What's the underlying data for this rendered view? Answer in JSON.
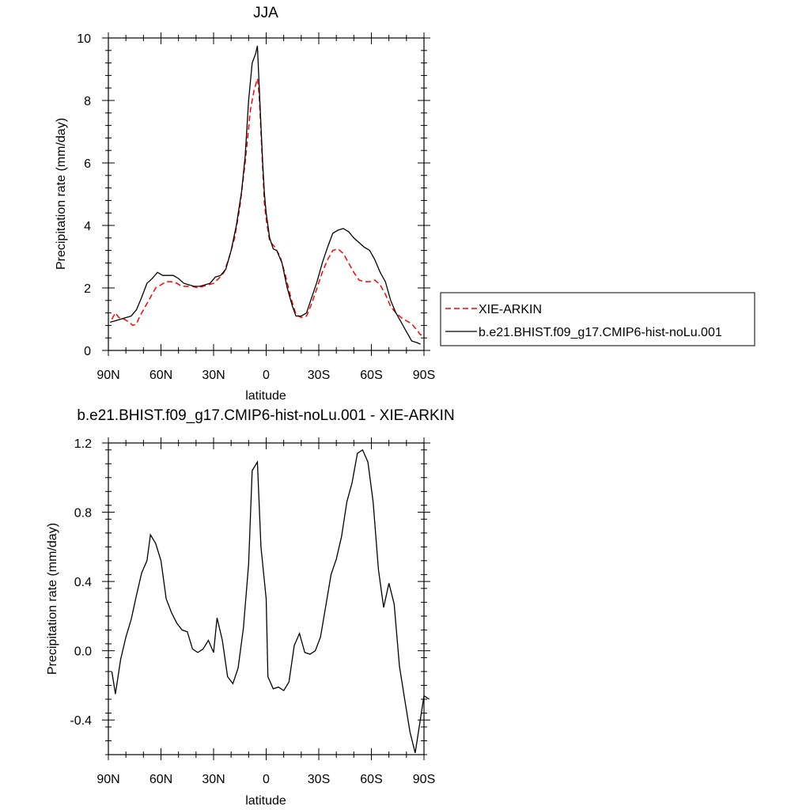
{
  "chart_data": [
    {
      "type": "line",
      "title": "JJA",
      "xlabel": "latitude",
      "ylabel": "Precipitation rate (mm/day)",
      "xlim": [
        90,
        -90
      ],
      "ylim": [
        0,
        10
      ],
      "xticks": [
        90,
        60,
        30,
        0,
        -30,
        -60,
        -90
      ],
      "xtick_labels": [
        "90N",
        "60N",
        "30N",
        "0",
        "30S",
        "60S",
        "90S"
      ],
      "yticks": [
        0,
        2,
        4,
        6,
        8,
        10
      ],
      "ytick_labels": [
        "0",
        "2",
        "4",
        "6",
        "8",
        "10"
      ],
      "legend_position": "right",
      "series": [
        {
          "name": "XIE-ARKIN",
          "color": "#ff0000",
          "dash": "dashed",
          "points": [
            [
              88,
              1.0
            ],
            [
              86,
              1.2
            ],
            [
              84,
              1.05
            ],
            [
              81,
              1.0
            ],
            [
              78,
              0.9
            ],
            [
              76,
              0.8
            ],
            [
              74,
              0.85
            ],
            [
              72,
              1.1
            ],
            [
              69,
              1.4
            ],
            [
              66,
              1.7
            ],
            [
              63,
              2.0
            ],
            [
              60,
              2.1
            ],
            [
              57,
              2.2
            ],
            [
              54,
              2.2
            ],
            [
              51,
              2.15
            ],
            [
              48,
              2.05
            ],
            [
              45,
              2.05
            ],
            [
              42,
              2.05
            ],
            [
              39,
              2.0
            ],
            [
              36,
              2.05
            ],
            [
              33,
              2.1
            ],
            [
              30,
              2.15
            ],
            [
              27,
              2.3
            ],
            [
              24,
              2.5
            ],
            [
              21,
              3.0
            ],
            [
              18,
              3.6
            ],
            [
              15,
              4.6
            ],
            [
              12,
              6.0
            ],
            [
              9,
              7.7
            ],
            [
              7,
              8.3
            ],
            [
              6,
              8.5
            ],
            [
              5,
              8.7
            ],
            [
              4,
              8.2
            ],
            [
              3,
              7.0
            ],
            [
              2,
              5.8
            ],
            [
              1,
              4.7
            ],
            [
              0,
              4.2
            ],
            [
              -2,
              3.5
            ],
            [
              -5,
              3.3
            ],
            [
              -8,
              3.0
            ],
            [
              -11,
              2.4
            ],
            [
              -14,
              1.7
            ],
            [
              -17,
              1.15
            ],
            [
              -20,
              1.05
            ],
            [
              -23,
              1.1
            ],
            [
              -26,
              1.5
            ],
            [
              -29,
              2.0
            ],
            [
              -32,
              2.5
            ],
            [
              -35,
              2.9
            ],
            [
              -38,
              3.2
            ],
            [
              -41,
              3.25
            ],
            [
              -44,
              3.1
            ],
            [
              -47,
              2.8
            ],
            [
              -50,
              2.5
            ],
            [
              -53,
              2.25
            ],
            [
              -56,
              2.2
            ],
            [
              -59,
              2.2
            ],
            [
              -62,
              2.25
            ],
            [
              -65,
              2.1
            ],
            [
              -68,
              1.8
            ],
            [
              -71,
              1.4
            ],
            [
              -74,
              1.2
            ],
            [
              -77,
              1.05
            ],
            [
              -80,
              0.95
            ],
            [
              -83,
              0.85
            ],
            [
              -86,
              0.65
            ],
            [
              -88,
              0.5
            ],
            [
              -90,
              0.5
            ]
          ]
        },
        {
          "name": "b.e21.BHIST.f09_g17.CMIP6-hist-noLu.001",
          "color": "#000000",
          "dash": "solid",
          "points": [
            [
              89,
              0.9
            ],
            [
              86,
              0.95
            ],
            [
              83,
              1.0
            ],
            [
              80,
              1.05
            ],
            [
              77,
              1.1
            ],
            [
              74,
              1.3
            ],
            [
              71,
              1.7
            ],
            [
              68,
              2.15
            ],
            [
              65,
              2.3
            ],
            [
              62,
              2.5
            ],
            [
              59,
              2.4
            ],
            [
              56,
              2.4
            ],
            [
              53,
              2.4
            ],
            [
              50,
              2.3
            ],
            [
              47,
              2.15
            ],
            [
              44,
              2.1
            ],
            [
              41,
              2.05
            ],
            [
              38,
              2.05
            ],
            [
              35,
              2.1
            ],
            [
              32,
              2.15
            ],
            [
              29,
              2.35
            ],
            [
              26,
              2.4
            ],
            [
              23,
              2.6
            ],
            [
              20,
              3.2
            ],
            [
              17,
              4.0
            ],
            [
              14,
              5.1
            ],
            [
              12,
              6.2
            ],
            [
              10,
              8.0
            ],
            [
              8,
              9.2
            ],
            [
              6,
              9.5
            ],
            [
              5,
              9.75
            ],
            [
              4,
              8.5
            ],
            [
              3,
              7.2
            ],
            [
              2,
              6.0
            ],
            [
              1,
              5.0
            ],
            [
              0,
              4.4
            ],
            [
              -2,
              3.6
            ],
            [
              -4,
              3.25
            ],
            [
              -6,
              3.2
            ],
            [
              -9,
              2.8
            ],
            [
              -12,
              2.0
            ],
            [
              -15,
              1.4
            ],
            [
              -17,
              1.1
            ],
            [
              -20,
              1.1
            ],
            [
              -23,
              1.2
            ],
            [
              -26,
              1.7
            ],
            [
              -29,
              2.2
            ],
            [
              -32,
              2.8
            ],
            [
              -35,
              3.3
            ],
            [
              -38,
              3.75
            ],
            [
              -41,
              3.85
            ],
            [
              -44,
              3.9
            ],
            [
              -47,
              3.8
            ],
            [
              -50,
              3.6
            ],
            [
              -53,
              3.45
            ],
            [
              -56,
              3.3
            ],
            [
              -59,
              3.2
            ],
            [
              -62,
              2.9
            ],
            [
              -65,
              2.5
            ],
            [
              -68,
              2.2
            ],
            [
              -71,
              1.6
            ],
            [
              -74,
              1.2
            ],
            [
              -77,
              0.9
            ],
            [
              -80,
              0.6
            ],
            [
              -83,
              0.3
            ],
            [
              -86,
              0.25
            ],
            [
              -88,
              0.2
            ]
          ]
        }
      ]
    },
    {
      "type": "line",
      "title": "b.e21.BHIST.f09_g17.CMIP6-hist-noLu.001 - XIE-ARKIN",
      "xlabel": "latitude",
      "ylabel": "Precipitation rate (mm/day)",
      "xlim": [
        90,
        -90
      ],
      "ylim": [
        -0.6,
        1.2
      ],
      "xticks": [
        90,
        60,
        30,
        0,
        -30,
        -60,
        -90
      ],
      "xtick_labels": [
        "90N",
        "60N",
        "30N",
        "0",
        "30S",
        "60S",
        "90S"
      ],
      "yticks": [
        -0.4,
        0.0,
        0.4,
        0.8,
        1.2
      ],
      "ytick_labels": [
        "-0.4",
        "0.0",
        "0.4",
        "0.8",
        "1.2"
      ],
      "series": [
        {
          "color": "#000000",
          "dash": "solid",
          "points": [
            [
              88,
              -0.12
            ],
            [
              86,
              -0.25
            ],
            [
              83,
              -0.05
            ],
            [
              80,
              0.08
            ],
            [
              77,
              0.18
            ],
            [
              74,
              0.32
            ],
            [
              71,
              0.45
            ],
            [
              68,
              0.52
            ],
            [
              66,
              0.67
            ],
            [
              63,
              0.62
            ],
            [
              60,
              0.52
            ],
            [
              57,
              0.3
            ],
            [
              54,
              0.22
            ],
            [
              51,
              0.16
            ],
            [
              48,
              0.12
            ],
            [
              45,
              0.11
            ],
            [
              42,
              0.01
            ],
            [
              39,
              -0.01
            ],
            [
              36,
              0.01
            ],
            [
              33,
              0.06
            ],
            [
              30,
              -0.01
            ],
            [
              28,
              0.19
            ],
            [
              25,
              0.06
            ],
            [
              22,
              -0.15
            ],
            [
              19,
              -0.19
            ],
            [
              16,
              -0.1
            ],
            [
              13,
              0.13
            ],
            [
              10,
              0.5
            ],
            [
              8,
              1.04
            ],
            [
              5,
              1.09
            ],
            [
              3,
              0.6
            ],
            [
              0,
              0.3
            ],
            [
              -1,
              -0.15
            ],
            [
              -4,
              -0.22
            ],
            [
              -7,
              -0.21
            ],
            [
              -10,
              -0.23
            ],
            [
              -13,
              -0.18
            ],
            [
              -16,
              0.03
            ],
            [
              -19,
              0.1
            ],
            [
              -22,
              -0.01
            ],
            [
              -25,
              -0.02
            ],
            [
              -28,
              0.0
            ],
            [
              -31,
              0.08
            ],
            [
              -34,
              0.26
            ],
            [
              -37,
              0.44
            ],
            [
              -40,
              0.53
            ],
            [
              -43,
              0.66
            ],
            [
              -46,
              0.86
            ],
            [
              -49,
              0.97
            ],
            [
              -52,
              1.14
            ],
            [
              -55,
              1.16
            ],
            [
              -58,
              1.09
            ],
            [
              -61,
              0.86
            ],
            [
              -64,
              0.47
            ],
            [
              -67,
              0.25
            ],
            [
              -70,
              0.39
            ],
            [
              -73,
              0.27
            ],
            [
              -76,
              -0.09
            ],
            [
              -79,
              -0.28
            ],
            [
              -82,
              -0.47
            ],
            [
              -85,
              -0.59
            ],
            [
              -87,
              -0.46
            ],
            [
              -90,
              -0.26
            ],
            [
              -93,
              -0.28
            ]
          ]
        }
      ]
    }
  ]
}
